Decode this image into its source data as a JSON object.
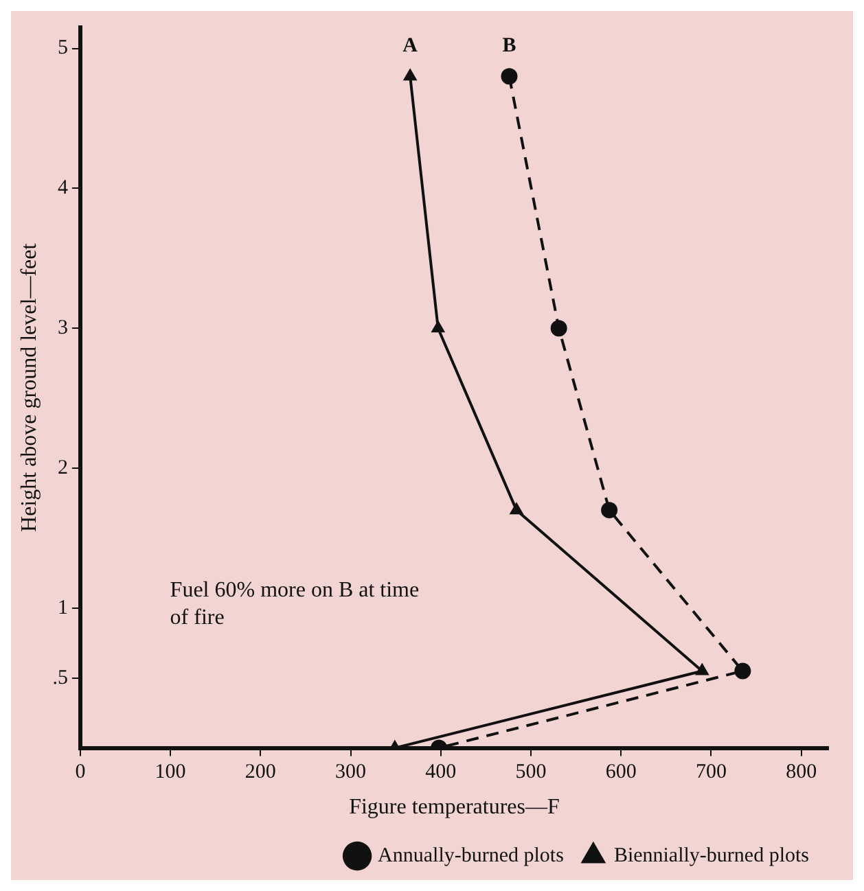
{
  "chart_data": {
    "type": "line",
    "xlabel": "Figure temperatures—F",
    "ylabel": "Height above ground level—feet",
    "xlim": [
      0,
      830
    ],
    "xticks": [
      0,
      100,
      200,
      300,
      400,
      500,
      600,
      700,
      800
    ],
    "ylim": [
      0,
      5.15
    ],
    "yticks": [
      {
        "value": 0.5,
        "label": ".5"
      },
      1,
      2,
      3,
      4,
      5
    ],
    "grid": false,
    "legend": "bottom right",
    "series": [
      {
        "name": "Annually-burned plots",
        "color": "#111111",
        "marker": "circle",
        "line_style": "dashed",
        "x": [
          476,
          531,
          587,
          735,
          398
        ],
        "values": [
          4.8,
          3,
          1.7,
          0.55,
          0
        ]
      },
      {
        "name": "Biennially-burned plots",
        "color": "#111111",
        "marker": "triangle",
        "line_style": "solid",
        "x": [
          366,
          397,
          484,
          690,
          349
        ],
        "values": [
          4.8,
          3,
          1.7,
          0.55,
          0
        ]
      }
    ],
    "annotations": [
      {
        "text": "A",
        "x": 366,
        "y": 4.8
      },
      {
        "text": "B",
        "x": 476,
        "y": 4.8
      },
      "Fuel 60% more on B at time of fire"
    ]
  }
}
